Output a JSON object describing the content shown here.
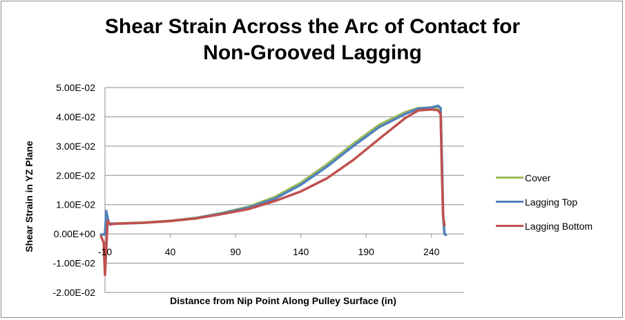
{
  "chart_data": {
    "type": "line",
    "title": [
      "Shear Strain Across the Arc of Contact for",
      "Non-Grooved Lagging"
    ],
    "xlabel": "Distance from Nip Point Along Pulley Surface (in)",
    "ylabel": "Shear Strain in YZ Plane",
    "xlim": [
      -10,
      265
    ],
    "ylim": [
      -0.02,
      0.05
    ],
    "x_ticks": [
      -10,
      40,
      90,
      140,
      190,
      240
    ],
    "x_tick_labels": [
      "-10",
      "40",
      "90",
      "140",
      "190",
      "240"
    ],
    "y_ticks": [
      -0.02,
      -0.01,
      0,
      0.01,
      0.02,
      0.03,
      0.04,
      0.05
    ],
    "y_tick_labels": [
      "-2.00E-02",
      "-1.00E-02",
      "0.00E+00",
      "1.00E-02",
      "2.00E-02",
      "3.00E-02",
      "4.00E-02",
      "5.00E-02"
    ],
    "grid": "horizontal",
    "legend_position": "right",
    "series": [
      {
        "name": "Cover",
        "color": "#9bbb59",
        "x": [
          -13,
          -10,
          -9,
          -8,
          -7,
          -6,
          -5,
          0,
          20,
          40,
          60,
          80,
          100,
          120,
          140,
          160,
          180,
          200,
          220,
          230,
          240,
          245,
          247,
          248,
          249,
          250,
          251
        ],
        "y": [
          -0.0002,
          -0.0002,
          0.007,
          0.005,
          0.0035,
          0.0032,
          0.0035,
          0.0036,
          0.0039,
          0.0045,
          0.0055,
          0.0072,
          0.0093,
          0.0126,
          0.0175,
          0.0238,
          0.0308,
          0.0373,
          0.0416,
          0.043,
          0.0432,
          0.0433,
          0.043,
          0.025,
          0.006,
          0.0,
          -0.0003
        ]
      },
      {
        "name": "Lagging Top",
        "color": "#4f81bd",
        "x": [
          -13,
          -10,
          -9,
          -8,
          -7,
          -6,
          -5,
          0,
          20,
          40,
          60,
          80,
          100,
          120,
          140,
          160,
          180,
          200,
          220,
          230,
          240,
          245,
          247,
          248,
          249,
          250,
          251
        ],
        "y": [
          -0.0002,
          -0.0002,
          0.0078,
          0.0055,
          0.0035,
          0.0032,
          0.0035,
          0.0035,
          0.0038,
          0.0044,
          0.0054,
          0.007,
          0.009,
          0.012,
          0.0168,
          0.023,
          0.03,
          0.0365,
          0.041,
          0.0428,
          0.0432,
          0.0438,
          0.043,
          0.025,
          0.006,
          0.0,
          -0.0004
        ]
      },
      {
        "name": "Lagging Bottom",
        "color": "#c0504d",
        "x": [
          -13,
          -11,
          -10,
          -9,
          -8,
          -7,
          -6,
          -5,
          0,
          20,
          40,
          60,
          80,
          100,
          120,
          140,
          160,
          180,
          200,
          220,
          230,
          240,
          245,
          247,
          248,
          249,
          250
        ],
        "y": [
          -0.0008,
          -0.003,
          -0.014,
          -0.005,
          0.0045,
          0.0038,
          0.0035,
          0.0033,
          0.0035,
          0.0038,
          0.0044,
          0.0053,
          0.0068,
          0.0085,
          0.0112,
          0.0145,
          0.019,
          0.0252,
          0.0325,
          0.0396,
          0.0422,
          0.0425,
          0.0423,
          0.041,
          0.02,
          0.006,
          0.003
        ]
      }
    ]
  }
}
